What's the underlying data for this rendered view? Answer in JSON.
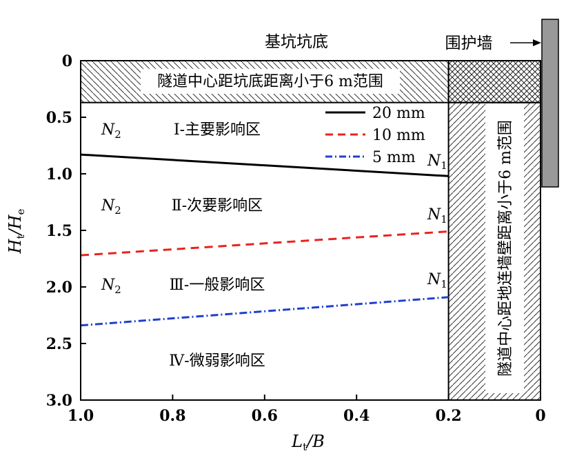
{
  "chart_data": {
    "type": "line",
    "title": "",
    "xlabel": {
      "main": "L",
      "sub": "t",
      "rest": "/B"
    },
    "ylabel": {
      "main": "H",
      "sub1": "t",
      "mid": "/H",
      "sub2": "e"
    },
    "xlim": [
      1.0,
      0.0
    ],
    "ylim": [
      0.0,
      3.0
    ],
    "x_reversed": true,
    "y_reversed": true,
    "xticks": [
      {
        "value": 1.0,
        "label": "1.0"
      },
      {
        "value": 0.8,
        "label": "0.8"
      },
      {
        "value": 0.6,
        "label": "0.6"
      },
      {
        "value": 0.4,
        "label": "0.4"
      },
      {
        "value": 0.2,
        "label": "0.2"
      },
      {
        "value": 0.0,
        "label": "0"
      }
    ],
    "yticks": [
      {
        "value": 0.0,
        "label": "0"
      },
      {
        "value": 0.5,
        "label": "0.5"
      },
      {
        "value": 1.0,
        "label": "1.0"
      },
      {
        "value": 1.5,
        "label": "1.5"
      },
      {
        "value": 2.0,
        "label": "2.0"
      },
      {
        "value": 2.5,
        "label": "2.5"
      },
      {
        "value": 3.0,
        "label": "3.0"
      }
    ],
    "series": [
      {
        "name": "20 mm",
        "color": "#000000",
        "dash": "solid",
        "x": [
          1.0,
          0.2
        ],
        "y": [
          0.83,
          1.02
        ]
      },
      {
        "name": "10 mm",
        "color": "#e8231f",
        "dash": "dashed",
        "x": [
          1.0,
          0.2
        ],
        "y": [
          1.72,
          1.51
        ]
      },
      {
        "name": "5 mm",
        "color": "#1f3fd0",
        "dash": "dashdot",
        "x": [
          1.0,
          0.2
        ],
        "y": [
          2.34,
          2.09
        ]
      }
    ],
    "regions": [
      {
        "name": "bottom-band",
        "label": "隧道中心距坑底距离小于6 m范围",
        "x": [
          1.0,
          0.2
        ],
        "y": [
          0.0,
          0.37
        ],
        "hatch": "backslash"
      },
      {
        "name": "corner-box",
        "label": "",
        "x": [
          0.2,
          0.0
        ],
        "y": [
          0.0,
          0.37
        ],
        "hatch": "cross"
      },
      {
        "name": "wall-band",
        "label": "隧道中心距地连墙壁距离小于6 m范围",
        "x": [
          0.2,
          0.0
        ],
        "y": [
          0.37,
          3.0
        ],
        "hatch": "slash"
      }
    ],
    "zones": [
      {
        "name": "zone-1",
        "label": "Ⅰ-主要影响区",
        "x": 0.76,
        "y": 0.6
      },
      {
        "name": "zone-2",
        "label": "Ⅱ-次要影响区",
        "x": 0.76,
        "y": 1.26
      },
      {
        "name": "zone-3",
        "label": "Ⅲ-一般影响区",
        "x": 0.76,
        "y": 2.0
      },
      {
        "name": "zone-4",
        "label": "Ⅳ-微弱影响区",
        "x": 0.76,
        "y": 2.72
      }
    ],
    "markers": [
      {
        "name": "n2-a",
        "base": "N",
        "sub": "2",
        "x": 0.955,
        "y": 0.6
      },
      {
        "name": "n2-b",
        "base": "N",
        "sub": "2",
        "x": 0.955,
        "y": 1.26
      },
      {
        "name": "n2-c",
        "base": "N",
        "sub": "2",
        "x": 0.955,
        "y": 2.0
      },
      {
        "name": "n1-a",
        "base": "N",
        "sub": "1",
        "x": 0.225,
        "y": 0.9
      },
      {
        "name": "n1-b",
        "base": "N",
        "sub": "1",
        "x": 0.225,
        "y": 1.44
      },
      {
        "name": "n1-c",
        "base": "N",
        "sub": "1",
        "x": 0.225,
        "y": 1.98
      }
    ],
    "legend": {
      "position": "top-right-inside"
    },
    "annotations": {
      "pit_bottom": "基坑坑底",
      "retaining_wall": "围护墙"
    },
    "grid": false
  }
}
